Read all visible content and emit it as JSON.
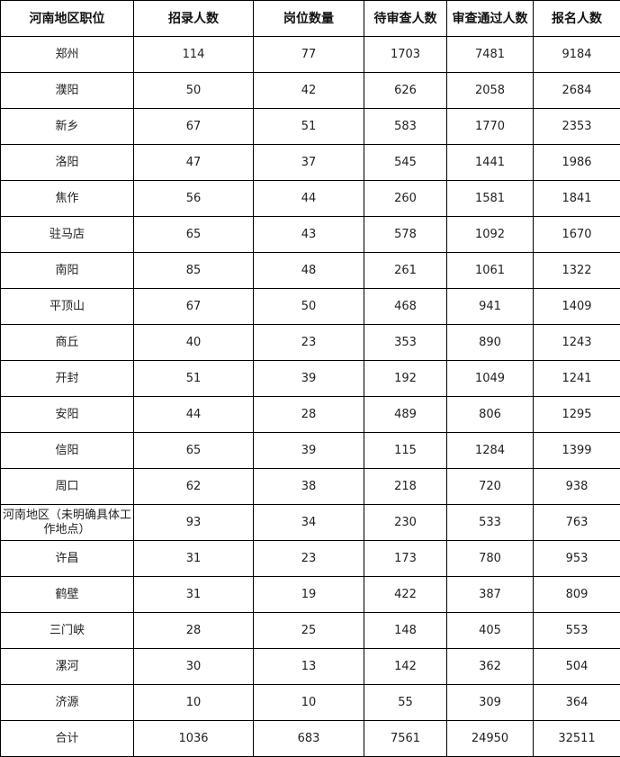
{
  "headers": [
    "河南地区职位",
    "招录人数",
    "岗位数量",
    "待审查人数",
    "审查通过人数",
    "报名人数"
  ],
  "rows": [
    [
      "郑州",
      "114",
      "77",
      "1703",
      "7481",
      "9184"
    ],
    [
      "濮阳",
      "50",
      "42",
      "626",
      "2058",
      "2684"
    ],
    [
      "新乡",
      "67",
      "51",
      "583",
      "1770",
      "2353"
    ],
    [
      "洛阳",
      "47",
      "37",
      "545",
      "1441",
      "1986"
    ],
    [
      "焦作",
      "56",
      "44",
      "260",
      "1581",
      "1841"
    ],
    [
      "驻马店",
      "65",
      "43",
      "578",
      "1092",
      "1670"
    ],
    [
      "南阳",
      "85",
      "48",
      "261",
      "1061",
      "1322"
    ],
    [
      "平顶山",
      "67",
      "50",
      "468",
      "941",
      "1409"
    ],
    [
      "商丘",
      "40",
      "23",
      "353",
      "890",
      "1243"
    ],
    [
      "开封",
      "51",
      "39",
      "192",
      "1049",
      "1241"
    ],
    [
      "安阳",
      "44",
      "28",
      "489",
      "806",
      "1295"
    ],
    [
      "信阳",
      "65",
      "39",
      "115",
      "1284",
      "1399"
    ],
    [
      "周口",
      "62",
      "38",
      "218",
      "720",
      "938"
    ],
    [
      "河南地区（未明确具体工作地点）",
      "93",
      "34",
      "230",
      "533",
      "763"
    ],
    [
      "许昌",
      "31",
      "23",
      "173",
      "780",
      "953"
    ],
    [
      "鹤壁",
      "31",
      "19",
      "422",
      "387",
      "809"
    ],
    [
      "三门峡",
      "28",
      "25",
      "148",
      "405",
      "553"
    ],
    [
      "漯河",
      "30",
      "13",
      "142",
      "362",
      "504"
    ],
    [
      "济源",
      "10",
      "10",
      "55",
      "309",
      "364"
    ],
    [
      "合计",
      "1036",
      "683",
      "7561",
      "24950",
      "32511"
    ]
  ]
}
